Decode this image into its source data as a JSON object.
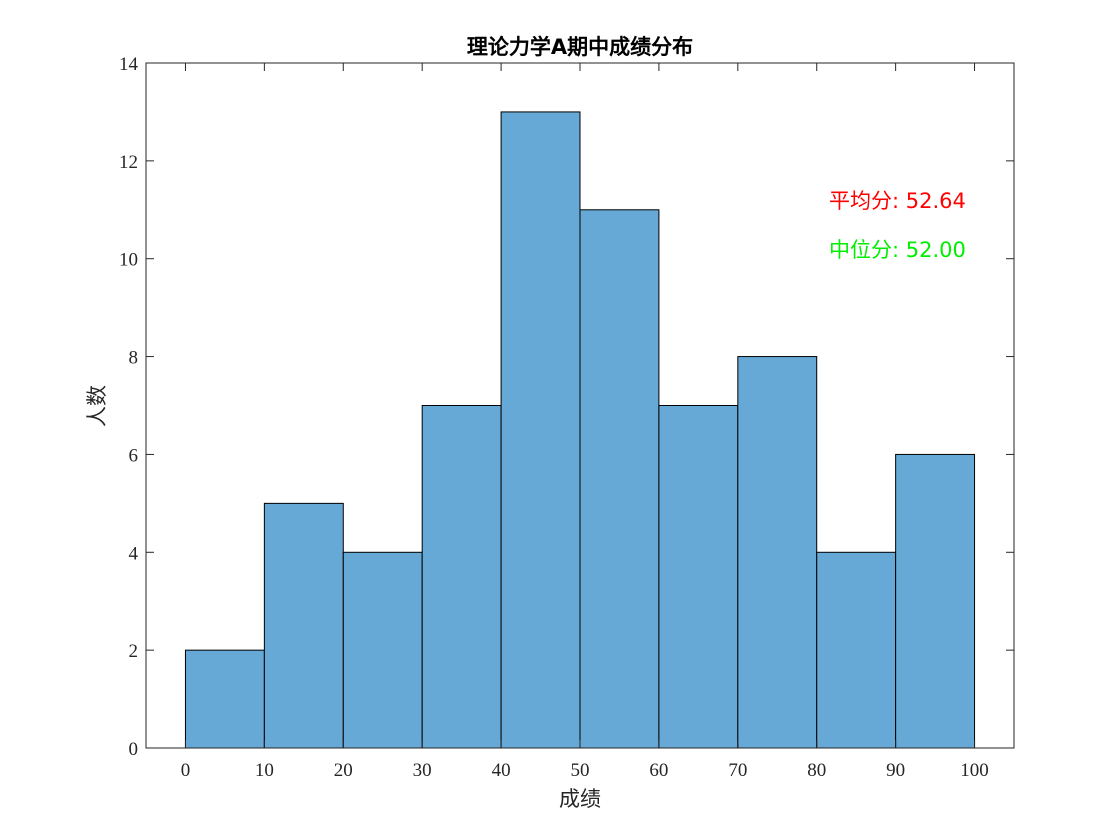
{
  "chart_data": {
    "type": "bar",
    "title": "理论力学A期中成绩分布",
    "xlabel": "成绩",
    "ylabel": "人数",
    "bin_edges": [
      0,
      10,
      20,
      30,
      40,
      50,
      60,
      70,
      80,
      90,
      100
    ],
    "values": [
      2,
      5,
      4,
      7,
      13,
      11,
      7,
      8,
      4,
      6
    ],
    "xlim": [
      -5,
      105
    ],
    "ylim": [
      0,
      14
    ],
    "xticks": [
      0,
      10,
      20,
      30,
      40,
      50,
      60,
      70,
      80,
      90,
      100
    ],
    "yticks": [
      0,
      2,
      4,
      6,
      8,
      10,
      12,
      14
    ],
    "grid": false,
    "bar_color": "#66a9d6",
    "annotations": [
      {
        "text": "平均分: 52.64",
        "color": "#ff0000"
      },
      {
        "text": "中位分: 52.00",
        "color": "#00ee00"
      }
    ]
  }
}
